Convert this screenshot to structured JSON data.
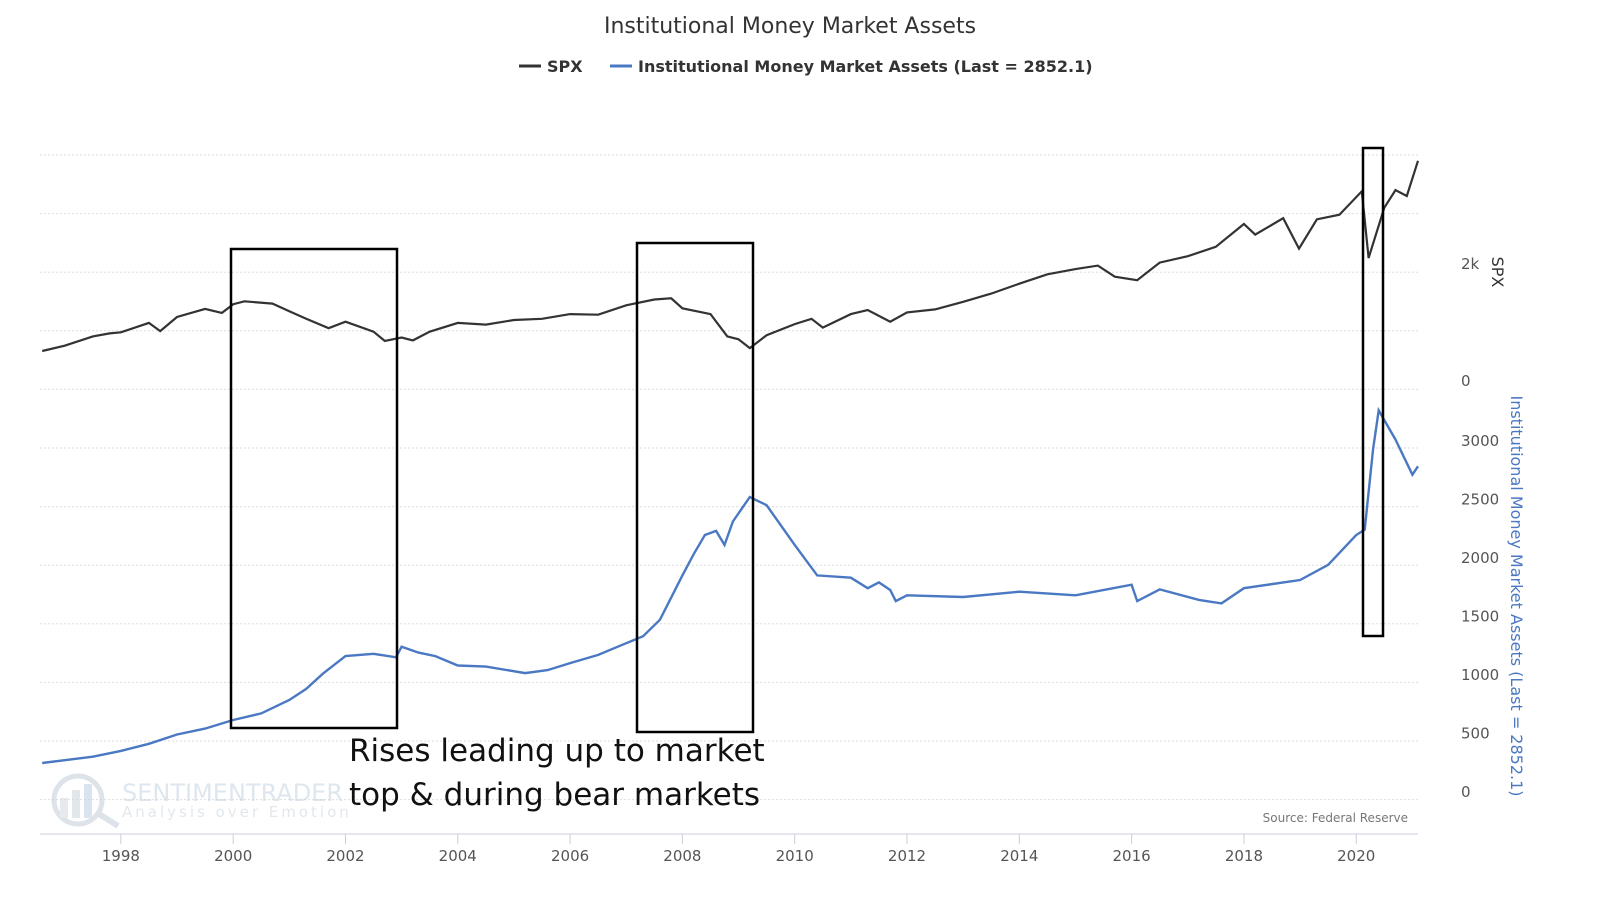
{
  "chart_data": {
    "type": "line",
    "title": "Institutional Money Market Assets",
    "legend": {
      "placement": "top-center",
      "entries": [
        "SPX",
        "Institutional Money Market Assets (Last = 2852.1)"
      ]
    },
    "x_ticks": [
      "1998",
      "2000",
      "2002",
      "2004",
      "2006",
      "2008",
      "2010",
      "2012",
      "2014",
      "2016",
      "2018",
      "2020"
    ],
    "xlim": [
      1996.56,
      2021.1
    ],
    "grid": true,
    "axes": {
      "spx": {
        "label": "SPX",
        "ticks": [
          "2k",
          "0"
        ],
        "ylim": [
          0,
          4000
        ]
      },
      "mm": {
        "label": "Institutional Money Market Assets (Last = 2852.1)",
        "ticks": [
          "3000",
          "2500",
          "2000",
          "1500",
          "1000",
          "500",
          "0"
        ],
        "ylim": [
          0,
          3000
        ]
      }
    },
    "series": [
      {
        "name": "SPX",
        "color": "#333333",
        "axis": "spx",
        "points": [
          [
            1996.6,
            650
          ],
          [
            1997,
            740
          ],
          [
            1997.5,
            900
          ],
          [
            1997.8,
            950
          ],
          [
            1998,
            970
          ],
          [
            1998.5,
            1130
          ],
          [
            1998.7,
            990
          ],
          [
            1999,
            1230
          ],
          [
            1999.5,
            1370
          ],
          [
            1999.8,
            1300
          ],
          [
            2000,
            1450
          ],
          [
            2000.2,
            1500
          ],
          [
            2000.7,
            1460
          ],
          [
            2001,
            1330
          ],
          [
            2001.3,
            1200
          ],
          [
            2001.7,
            1040
          ],
          [
            2002,
            1150
          ],
          [
            2002.5,
            980
          ],
          [
            2002.7,
            820
          ],
          [
            2003,
            880
          ],
          [
            2003.2,
            830
          ],
          [
            2003.5,
            980
          ],
          [
            2004,
            1130
          ],
          [
            2004.5,
            1100
          ],
          [
            2005,
            1180
          ],
          [
            2005.5,
            1200
          ],
          [
            2006,
            1280
          ],
          [
            2006.5,
            1270
          ],
          [
            2007,
            1430
          ],
          [
            2007.5,
            1530
          ],
          [
            2007.8,
            1550
          ],
          [
            2008,
            1380
          ],
          [
            2008.5,
            1280
          ],
          [
            2008.8,
            900
          ],
          [
            2009,
            850
          ],
          [
            2009.2,
            700
          ],
          [
            2009.5,
            920
          ],
          [
            2010,
            1110
          ],
          [
            2010.3,
            1200
          ],
          [
            2010.5,
            1050
          ],
          [
            2011,
            1280
          ],
          [
            2011.3,
            1350
          ],
          [
            2011.7,
            1150
          ],
          [
            2012,
            1310
          ],
          [
            2012.5,
            1360
          ],
          [
            2013,
            1490
          ],
          [
            2013.5,
            1630
          ],
          [
            2014,
            1800
          ],
          [
            2014.5,
            1960
          ],
          [
            2015,
            2050
          ],
          [
            2015.4,
            2110
          ],
          [
            2015.7,
            1920
          ],
          [
            2016.1,
            1860
          ],
          [
            2016.5,
            2160
          ],
          [
            2017,
            2270
          ],
          [
            2017.5,
            2430
          ],
          [
            2018,
            2820
          ],
          [
            2018.2,
            2640
          ],
          [
            2018.7,
            2920
          ],
          [
            2018.98,
            2400
          ],
          [
            2019.3,
            2900
          ],
          [
            2019.7,
            2980
          ],
          [
            2020.1,
            3380
          ],
          [
            2020.22,
            2240
          ],
          [
            2020.5,
            3100
          ],
          [
            2020.7,
            3400
          ],
          [
            2020.9,
            3300
          ],
          [
            2021.1,
            3900
          ]
        ]
      },
      {
        "name": "Institutional Money Market Assets (Last = 2852.1)",
        "color": "#4a78c2",
        "axis": "mm",
        "points": [
          [
            1996.6,
            316
          ],
          [
            1997,
            340
          ],
          [
            1997.5,
            370
          ],
          [
            1998,
            420
          ],
          [
            1998.5,
            480
          ],
          [
            1999,
            560
          ],
          [
            1999.5,
            610
          ],
          [
            2000,
            684
          ],
          [
            2000.5,
            740
          ],
          [
            2001,
            855
          ],
          [
            2001.3,
            950
          ],
          [
            2001.6,
            1080
          ],
          [
            2002,
            1230
          ],
          [
            2002.5,
            1250
          ],
          [
            2002.9,
            1220
          ],
          [
            2003,
            1310
          ],
          [
            2003.3,
            1260
          ],
          [
            2003.6,
            1230
          ],
          [
            2004,
            1150
          ],
          [
            2004.5,
            1140
          ],
          [
            2005.2,
            1085
          ],
          [
            2005.6,
            1110
          ],
          [
            2006,
            1170
          ],
          [
            2006.5,
            1240
          ],
          [
            2007,
            1340
          ],
          [
            2007.3,
            1400
          ],
          [
            2007.6,
            1540
          ],
          [
            2008,
            1920
          ],
          [
            2008.2,
            2100
          ],
          [
            2008.4,
            2265
          ],
          [
            2008.6,
            2300
          ],
          [
            2008.75,
            2180
          ],
          [
            2008.9,
            2380
          ],
          [
            2009.2,
            2590
          ],
          [
            2009.5,
            2520
          ],
          [
            2010,
            2180
          ],
          [
            2010.4,
            1920
          ],
          [
            2011,
            1900
          ],
          [
            2011.3,
            1810
          ],
          [
            2011.5,
            1860
          ],
          [
            2011.7,
            1795
          ],
          [
            2011.8,
            1700
          ],
          [
            2012,
            1750
          ],
          [
            2013,
            1735
          ],
          [
            2014,
            1780
          ],
          [
            2015,
            1750
          ],
          [
            2016,
            1840
          ],
          [
            2016.1,
            1700
          ],
          [
            2016.5,
            1800
          ],
          [
            2017.2,
            1710
          ],
          [
            2017.6,
            1680
          ],
          [
            2018,
            1810
          ],
          [
            2019,
            1880
          ],
          [
            2019.5,
            2010
          ],
          [
            2020,
            2265
          ],
          [
            2020.15,
            2310
          ],
          [
            2020.3,
            3000
          ],
          [
            2020.4,
            3330
          ],
          [
            2020.7,
            3080
          ],
          [
            2021,
            2780
          ],
          [
            2021.1,
            2852.1
          ]
        ]
      }
    ],
    "annotations": [
      "Rises leading up to market",
      "top & during bear markets"
    ],
    "source": "Source: Federal Reserve",
    "watermark": [
      "SENTIMENTRADER",
      "Analysis over Emotion"
    ]
  }
}
